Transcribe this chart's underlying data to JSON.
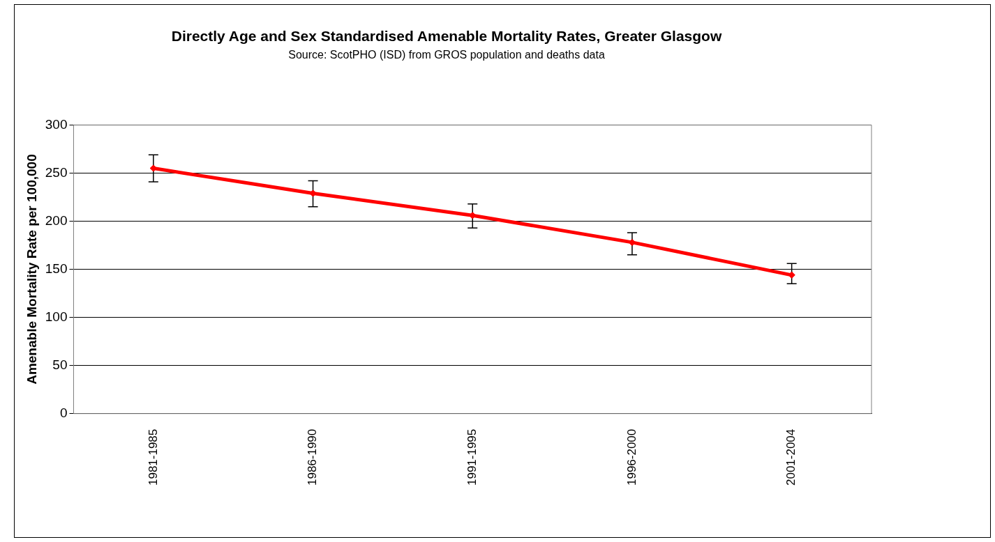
{
  "chart_data": {
    "type": "line",
    "title": "Directly Age and Sex Standardised Amenable Mortality Rates, Greater Glasgow",
    "annotations": [
      "Source: ScotPHO (ISD) from GROS population and deaths data"
    ],
    "ylabel": "Amenable Mortality Rate per 100,000",
    "categories": [
      "1981-1985",
      "1986-1990",
      "1991-1995",
      "1996-2000",
      "2001-2004"
    ],
    "series": [
      {
        "color": "#ff0000",
        "values": [
          255,
          229,
          206,
          178,
          144
        ],
        "errors": [
          [
            241,
            269
          ],
          [
            215,
            242
          ],
          [
            193,
            218
          ],
          [
            165,
            188
          ],
          [
            135,
            156
          ]
        ]
      }
    ],
    "ylim": [
      0,
      300
    ],
    "yticks": [
      0,
      50,
      100,
      150,
      200,
      250,
      300
    ],
    "grid": "y",
    "legend": false,
    "marker": "diamond",
    "line_style": "solid"
  }
}
